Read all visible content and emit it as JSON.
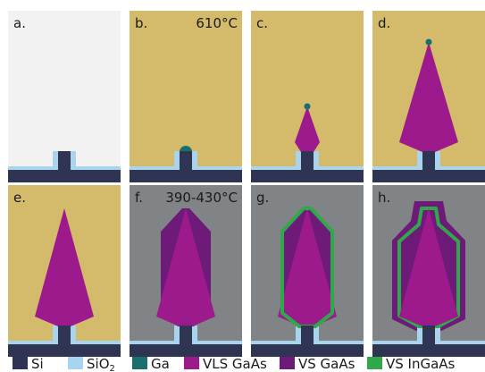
{
  "panels": [
    {
      "label": "a.",
      "temperature": "",
      "background": "#f2f2f2",
      "stage": "substrate"
    },
    {
      "label": "b.",
      "temperature": "610°C",
      "background": "#d4bb6b",
      "stage": "ga-droplet"
    },
    {
      "label": "c.",
      "temperature": "",
      "background": "#d4bb6b",
      "stage": "vls-short"
    },
    {
      "label": "d.",
      "temperature": "",
      "background": "#d4bb6b",
      "stage": "vls-tall"
    },
    {
      "label": "e.",
      "temperature": "",
      "background": "#d4bb6b",
      "stage": "vls-tall-no-droplet"
    },
    {
      "label": "f.",
      "temperature": "390-430°C",
      "background": "#808486",
      "stage": "vs-shell"
    },
    {
      "label": "g.",
      "temperature": "",
      "background": "#808486",
      "stage": "vs-shell-ingaas"
    },
    {
      "label": "h.",
      "temperature": "",
      "background": "#808486",
      "stage": "vs-shell-ingaas-vs-outer"
    }
  ],
  "legend": [
    {
      "key": "si",
      "label": "Si",
      "subscript": "",
      "color": "#2e3451"
    },
    {
      "key": "sio2",
      "label": "SiO",
      "subscript": "2",
      "color": "#a8d4ee"
    },
    {
      "key": "ga",
      "label": "Ga",
      "subscript": "",
      "color": "#17706e"
    },
    {
      "key": "vls-gaas",
      "label": "VLS GaAs",
      "subscript": "",
      "color": "#9c1a8c"
    },
    {
      "key": "vs-gaas",
      "label": "VS GaAs",
      "subscript": "",
      "color": "#6e1a78"
    },
    {
      "key": "vs-ingaas",
      "label": "VS InGaAs",
      "subscript": "",
      "color": "#2fa84a"
    }
  ],
  "colors": {
    "si": "#2e3451",
    "sio2": "#a8d4ee",
    "ga": "#17706e",
    "vls_gaas": "#9c1a8c",
    "vs_gaas": "#6e1a78",
    "vs_ingaas": "#2fa84a",
    "text": "#1a1a1a"
  }
}
